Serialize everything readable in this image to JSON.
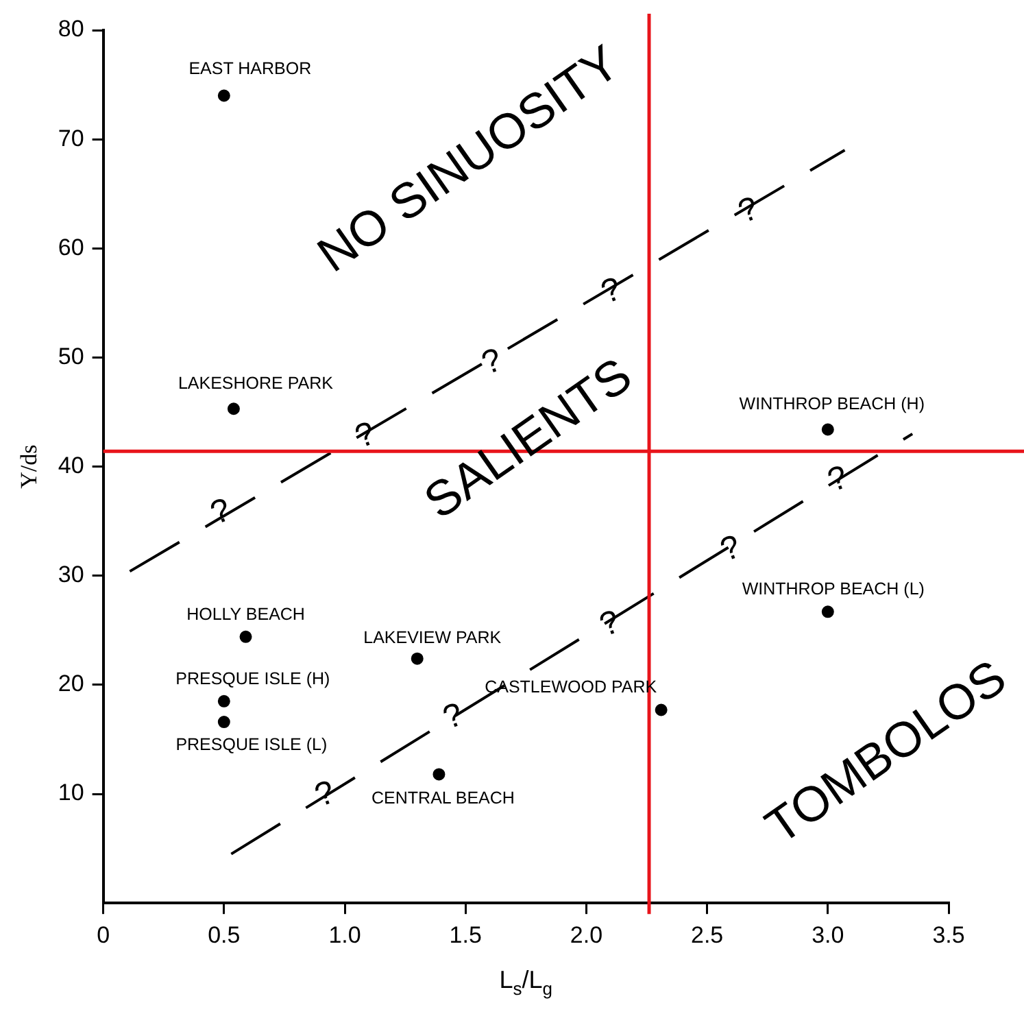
{
  "chart_data": {
    "type": "scatter",
    "xlabel": "L$_{s}$/L$_{g}$",
    "ylabel": "Y/ds",
    "xlim": [
      0,
      3.5
    ],
    "xticks": [
      0,
      {
        "value": 0.5,
        "label": "0.5"
      },
      {
        "value": 1,
        "label": "1.0"
      },
      {
        "value": 1.5,
        "label": "1.5"
      },
      {
        "value": 2,
        "label": "2.0"
      },
      {
        "value": 2.5,
        "label": "2.5"
      },
      {
        "value": 3,
        "label": "3.0"
      },
      {
        "value": 3.5,
        "label": "3.5"
      }
    ],
    "ylim": [
      0,
      80
    ],
    "yticks": [
      10,
      20,
      30,
      40,
      50,
      60,
      70,
      80
    ],
    "grid": false,
    "legend": false,
    "series": [
      {
        "color": "#000000",
        "marker": "circle",
        "x": [
          0.5,
          0.54,
          0.59,
          0.5,
          0.5,
          1.3,
          1.39,
          2.31,
          3.0,
          3.0
        ],
        "values": [
          74,
          45.3,
          24.4,
          18.5,
          16.6,
          22.4,
          11.8,
          17.7,
          43.4,
          26.7
        ],
        "value_labels": [
          "EAST HARBOR",
          "LAKESHORE PARK",
          "HOLLY BEACH",
          "PRESQUE ISLE (H)",
          "PRESQUE ISLE (L)",
          "LAKEVIEW PARK",
          "CENTRAL BEACH",
          "CASTLEWOOD PARK",
          "WINTHROP BEACH (H)",
          "WINTHROP BEACH (L)"
        ]
      },
      {
        "type": "line",
        "color": "#000000",
        "marker": "none",
        "line_style": "dashed",
        "x": [
          0.11,
          3.07
        ],
        "values": [
          30.4,
          69.0
        ]
      },
      {
        "type": "line",
        "color": "#000000",
        "marker": "none",
        "line_style": "dashed",
        "x": [
          0.53,
          3.35
        ],
        "values": [
          4.5,
          43.0
        ]
      }
    ],
    "ref_lines": [
      {
        "axis": "x",
        "value": 2.26,
        "color": "#e8141b"
      },
      {
        "axis": "y",
        "value": 41.4,
        "color": "#e8141b"
      }
    ],
    "annotations": [
      "NO SINUOSITY",
      "SALIENTS",
      "TOMBOLOS",
      "?",
      "?",
      "?",
      "?",
      "?",
      "?",
      "?",
      "?",
      "?",
      "?"
    ]
  }
}
